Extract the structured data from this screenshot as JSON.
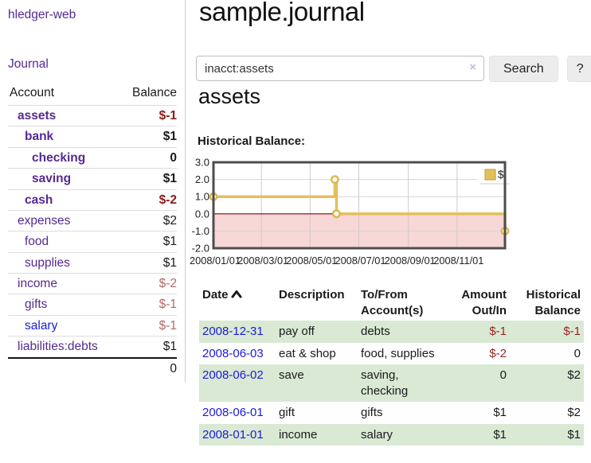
{
  "sidebar": {
    "brand": "hledger-web",
    "journal_link": "Journal",
    "accounts_table": {
      "account_header": "Account",
      "balance_header": "Balance",
      "rows": [
        {
          "name": "assets",
          "indent": 1,
          "bold": true,
          "balance": "$-1"
        },
        {
          "name": "bank",
          "indent": 2,
          "bold": true,
          "balance": "$1"
        },
        {
          "name": "checking",
          "indent": 3,
          "bold": true,
          "balance": "0"
        },
        {
          "name": "saving",
          "indent": 3,
          "bold": true,
          "balance": "$1"
        },
        {
          "name": "cash",
          "indent": 2,
          "bold": true,
          "balance": "$-2"
        },
        {
          "name": "expenses",
          "indent": 1,
          "bold": false,
          "balance": "$2"
        },
        {
          "name": "food",
          "indent": 2,
          "bold": false,
          "balance": "$1"
        },
        {
          "name": "supplies",
          "indent": 2,
          "bold": false,
          "balance": "$1"
        },
        {
          "name": "income",
          "indent": 1,
          "bold": false,
          "balance": "$-2"
        },
        {
          "name": "gifts",
          "indent": 2,
          "bold": false,
          "balance": "$-1"
        },
        {
          "name": "salary",
          "indent": 2,
          "bold": false,
          "balance": "$-1",
          "unvisited": true
        },
        {
          "name": "liabilities:debts",
          "indent": 1,
          "bold": false,
          "balance": "$1"
        }
      ],
      "total": "0"
    }
  },
  "header": {
    "title": "sample.journal"
  },
  "search": {
    "value": "inacct:assets",
    "clear_icon": "×",
    "search_button": "Search",
    "help_button": "?"
  },
  "account_page": {
    "title": "assets",
    "chart_label": "Historical Balance:"
  },
  "chart_data": {
    "type": "line",
    "step": true,
    "title": "Historical Balance:",
    "legend": {
      "position": "top-right",
      "entries": [
        "$"
      ]
    },
    "series": [
      {
        "name": "$",
        "points": [
          {
            "date": "2008-01-01",
            "day": 0,
            "value": 1
          },
          {
            "date": "2008-06-01",
            "day": 152,
            "value": 2
          },
          {
            "date": "2008-06-03",
            "day": 154,
            "value": 0
          },
          {
            "date": "2008-12-31",
            "day": 365,
            "value": -1
          }
        ]
      }
    ],
    "x_ticks": [
      {
        "day": 0,
        "label": "2008/01/01"
      },
      {
        "day": 60,
        "label": "2008/03/01"
      },
      {
        "day": 121,
        "label": "2008/05/01"
      },
      {
        "day": 182,
        "label": "2008/07/01"
      },
      {
        "day": 244,
        "label": "2008/09/01"
      },
      {
        "day": 305,
        "label": "2008/11/01"
      }
    ],
    "y_ticks": [
      "3.0",
      "2.0",
      "1.0",
      "0.0",
      "-1.0",
      "-2.0"
    ],
    "ylim": [
      -2,
      3
    ],
    "xlim_days": [
      0,
      365
    ],
    "grid": true
  },
  "register": {
    "headers": {
      "date": "Date",
      "description": "Description",
      "tofrom": "To/From Account(s)",
      "amount": "Amount Out/In",
      "balance": "Historical Balance"
    },
    "rows": [
      {
        "date": "2008-12-31",
        "description": "pay off",
        "accounts": "debts",
        "amount": "$-1",
        "balance": "$-1"
      },
      {
        "date": "2008-06-03",
        "description": "eat & shop",
        "accounts": "food, supplies",
        "amount": "$-2",
        "balance": "0"
      },
      {
        "date": "2008-06-02",
        "description": "save",
        "accounts": "saving, checking",
        "amount": "0",
        "balance": "$2"
      },
      {
        "date": "2008-06-01",
        "description": "gift",
        "accounts": "gifts",
        "amount": "$1",
        "balance": "$2"
      },
      {
        "date": "2008-01-01",
        "description": "income",
        "accounts": "salary",
        "amount": "$1",
        "balance": "$1"
      }
    ]
  },
  "colors": {
    "accent_purple": "#542a91",
    "link_blue": "#1d1bd8",
    "neg_strong": "#8e1a1a",
    "neg_soft": "#b26a66",
    "table_neg": "#9d2420",
    "row_green": "#d9e9d4",
    "chart_line_gold": "#e4c05a",
    "chart_negative_fill": "#f8d7d7",
    "chart_zero_line": "#8b0000",
    "chart_border": "#4d4d4d"
  }
}
